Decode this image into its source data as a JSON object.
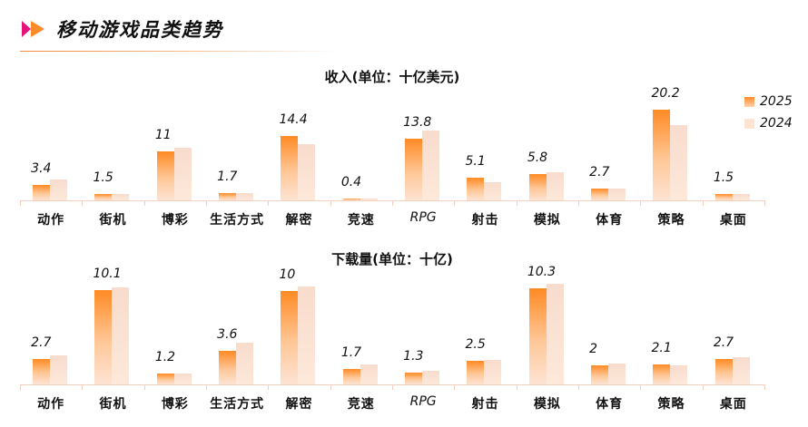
{
  "header": {
    "title": "移动游戏品类趋势",
    "icon": "double-play-arrow-icon",
    "accent_colors": [
      "#e8127a",
      "#ff8a2a"
    ]
  },
  "legend": {
    "items": [
      {
        "label": "2025",
        "color": "#ff8a24"
      },
      {
        "label": "2024",
        "color": "#fde3d3"
      }
    ]
  },
  "chart_data": [
    {
      "type": "bar",
      "title": "收入(单位：十亿美元)",
      "xlabel": "",
      "ylabel": "",
      "categories": [
        "动作",
        "街机",
        "博彩",
        "生活方式",
        "解密",
        "竞速",
        "RPG",
        "射击",
        "模拟",
        "体育",
        "策略",
        "桌面"
      ],
      "series": [
        {
          "name": "2025",
          "values": [
            3.4,
            1.5,
            11,
            1.7,
            14.4,
            0.4,
            13.8,
            5.1,
            5.8,
            2.7,
            20.2,
            1.5
          ]
        },
        {
          "name": "2024",
          "values": [
            4.6,
            1.5,
            11.7,
            1.7,
            12.5,
            0.3,
            15.6,
            4.1,
            6.3,
            2.6,
            16.8,
            1.4
          ]
        }
      ],
      "data_labels": [
        "3.4",
        "1.5",
        "11",
        "1.7",
        "14.4",
        "0.4",
        "13.8",
        "5.1",
        "5.8",
        "2.7",
        "20.2",
        "1.5"
      ],
      "ylim": [
        0,
        20.2
      ],
      "grid": false,
      "legend_position": "top-right"
    },
    {
      "type": "bar",
      "title": "下载量(单位：十亿)",
      "xlabel": "",
      "ylabel": "",
      "categories": [
        "动作",
        "街机",
        "博彩",
        "生活方式",
        "解密",
        "竞速",
        "RPG",
        "射击",
        "模拟",
        "体育",
        "策略",
        "桌面"
      ],
      "series": [
        {
          "name": "2025",
          "values": [
            2.7,
            10.1,
            1.2,
            3.6,
            10,
            1.7,
            1.3,
            2.5,
            10.3,
            2,
            2.1,
            2.7
          ]
        },
        {
          "name": "2024",
          "values": [
            3.1,
            10.4,
            1.2,
            4.5,
            10.5,
            2.1,
            1.5,
            2.6,
            10.8,
            2.2,
            2.0,
            2.9
          ]
        }
      ],
      "data_labels": [
        "2.7",
        "10.1",
        "1.2",
        "3.6",
        "10",
        "1.7",
        "1.3",
        "2.5",
        "10.3",
        "2",
        "2.1",
        "2.7"
      ],
      "ylim": [
        0,
        10.8
      ],
      "grid": false,
      "legend_position": "none"
    }
  ]
}
